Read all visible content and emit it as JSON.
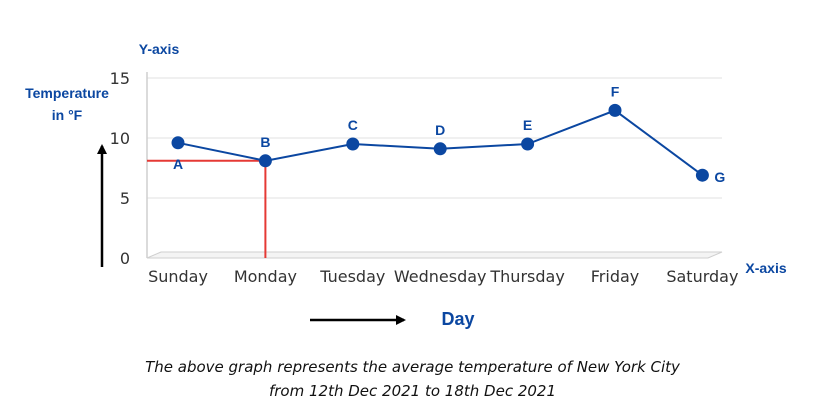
{
  "chart_data": {
    "type": "line",
    "categories": [
      "Sunday",
      "Monday",
      "Tuesday",
      "Wednesday",
      "Thursday",
      "Friday",
      "Saturday"
    ],
    "values": [
      9.6,
      8.1,
      9.5,
      9.1,
      9.5,
      12.3,
      6.9
    ],
    "point_labels": [
      "A",
      "B",
      "C",
      "D",
      "E",
      "F",
      "G"
    ],
    "xlabel": "Day",
    "ylabel": "Temperature in °F",
    "ylabel_lines": [
      "Temperature",
      "in °F"
    ],
    "x_axis_tag": "X-axis",
    "y_axis_tag": "Y-axis",
    "ylim": [
      0,
      15
    ],
    "yticks": [
      0,
      5,
      10,
      15
    ],
    "grid": true,
    "highlight": {
      "category": "Monday",
      "value": 8.1
    },
    "colors": {
      "series": "#0b47a1",
      "highlight": "#e53935",
      "grid": "#e0e0e0",
      "text": "#333333"
    }
  },
  "caption": {
    "line1": "The above graph represents the average temperature of New York City",
    "line2": "from 12th Dec 2021 to 18th Dec 2021"
  }
}
